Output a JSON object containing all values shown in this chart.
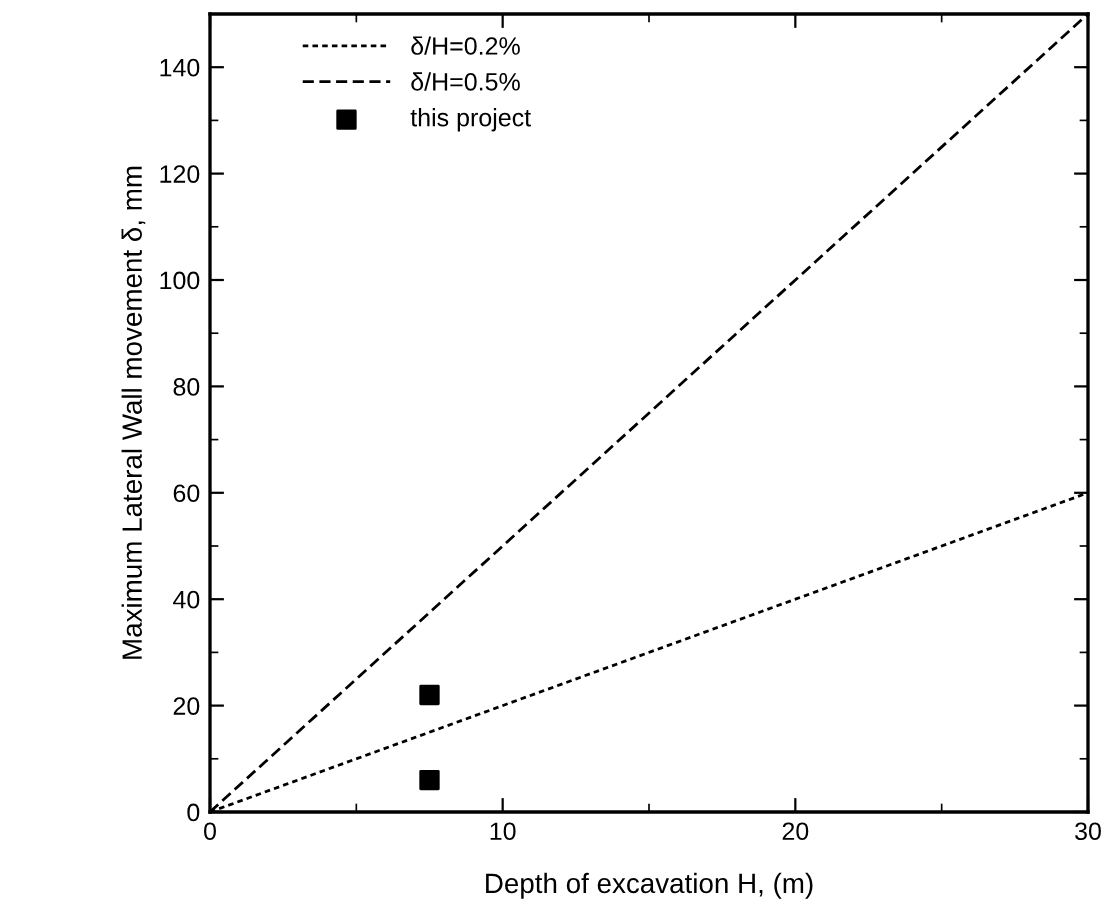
{
  "chart_data": {
    "type": "line",
    "xlabel": "Depth of excavation H, (m)",
    "ylabel": "Maximum Lateral Wall movement δ, mm",
    "xlim": [
      0,
      30
    ],
    "ylim": [
      0,
      150
    ],
    "xticks": [
      0,
      10,
      20,
      30
    ],
    "yticks": [
      0,
      20,
      40,
      60,
      80,
      100,
      120,
      140
    ],
    "grid": false,
    "legend": "top left",
    "series": [
      {
        "name": "δ/H=0.2%",
        "color": "#000000",
        "x": [
          0,
          30
        ],
        "values": [
          0,
          60
        ],
        "line_style": "dotted",
        "marker": "none"
      },
      {
        "name": "δ/H=0.5%",
        "color": "#000000",
        "x": [
          0,
          30
        ],
        "values": [
          0,
          150
        ],
        "line_style": "dashed",
        "marker": "none"
      },
      {
        "name": "this project",
        "type": "scatter",
        "color": "#000000",
        "x": [
          7.5,
          7.5
        ],
        "values": [
          22,
          6
        ],
        "marker": "square"
      }
    ]
  }
}
